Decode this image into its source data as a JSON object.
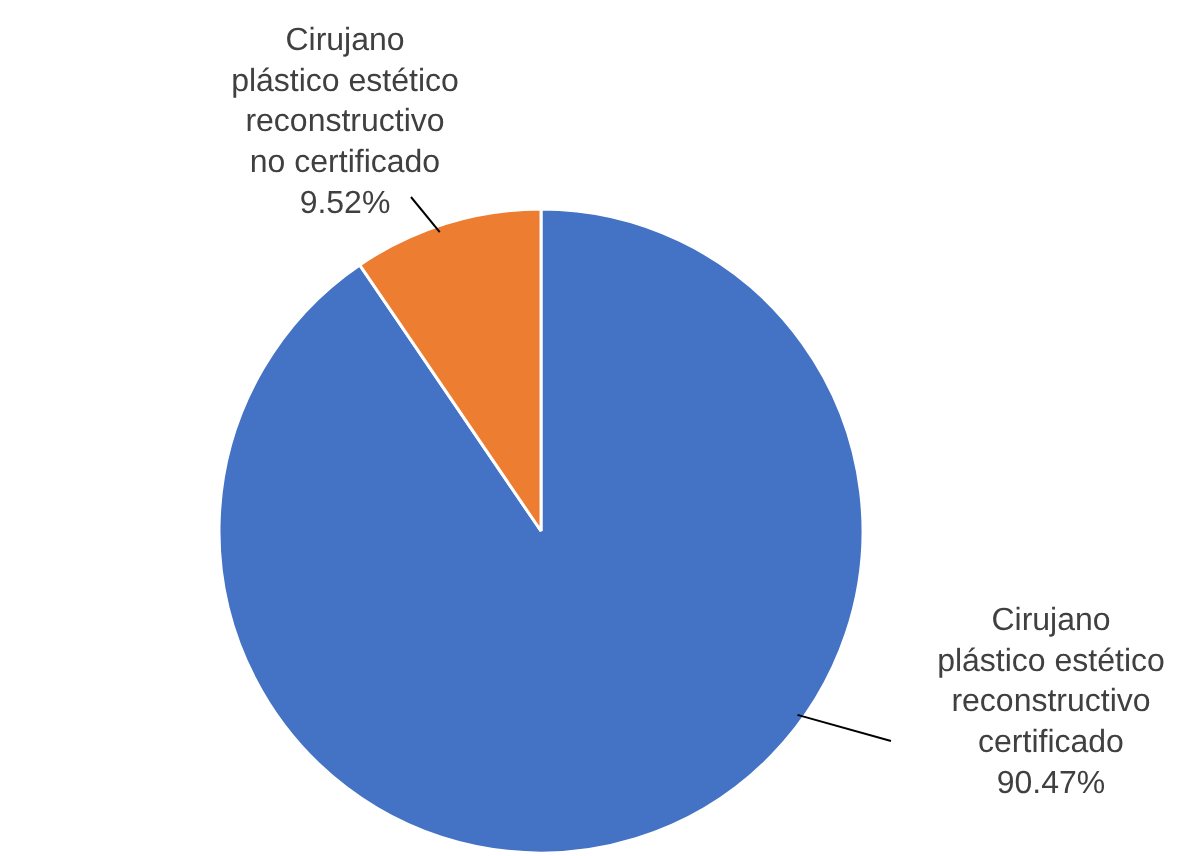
{
  "chart_data": {
    "type": "pie",
    "categories": [
      "Cirujano\nplástico estético\nreconstructivo\ncertificado",
      "Cirujano\nplástico estético\nreconstructivo\nno certificado"
    ],
    "values": [
      90.47,
      9.52
    ],
    "value_labels": [
      "90.47%",
      "9.52%"
    ],
    "colors": [
      "#4472c4",
      "#ed7d31"
    ]
  }
}
